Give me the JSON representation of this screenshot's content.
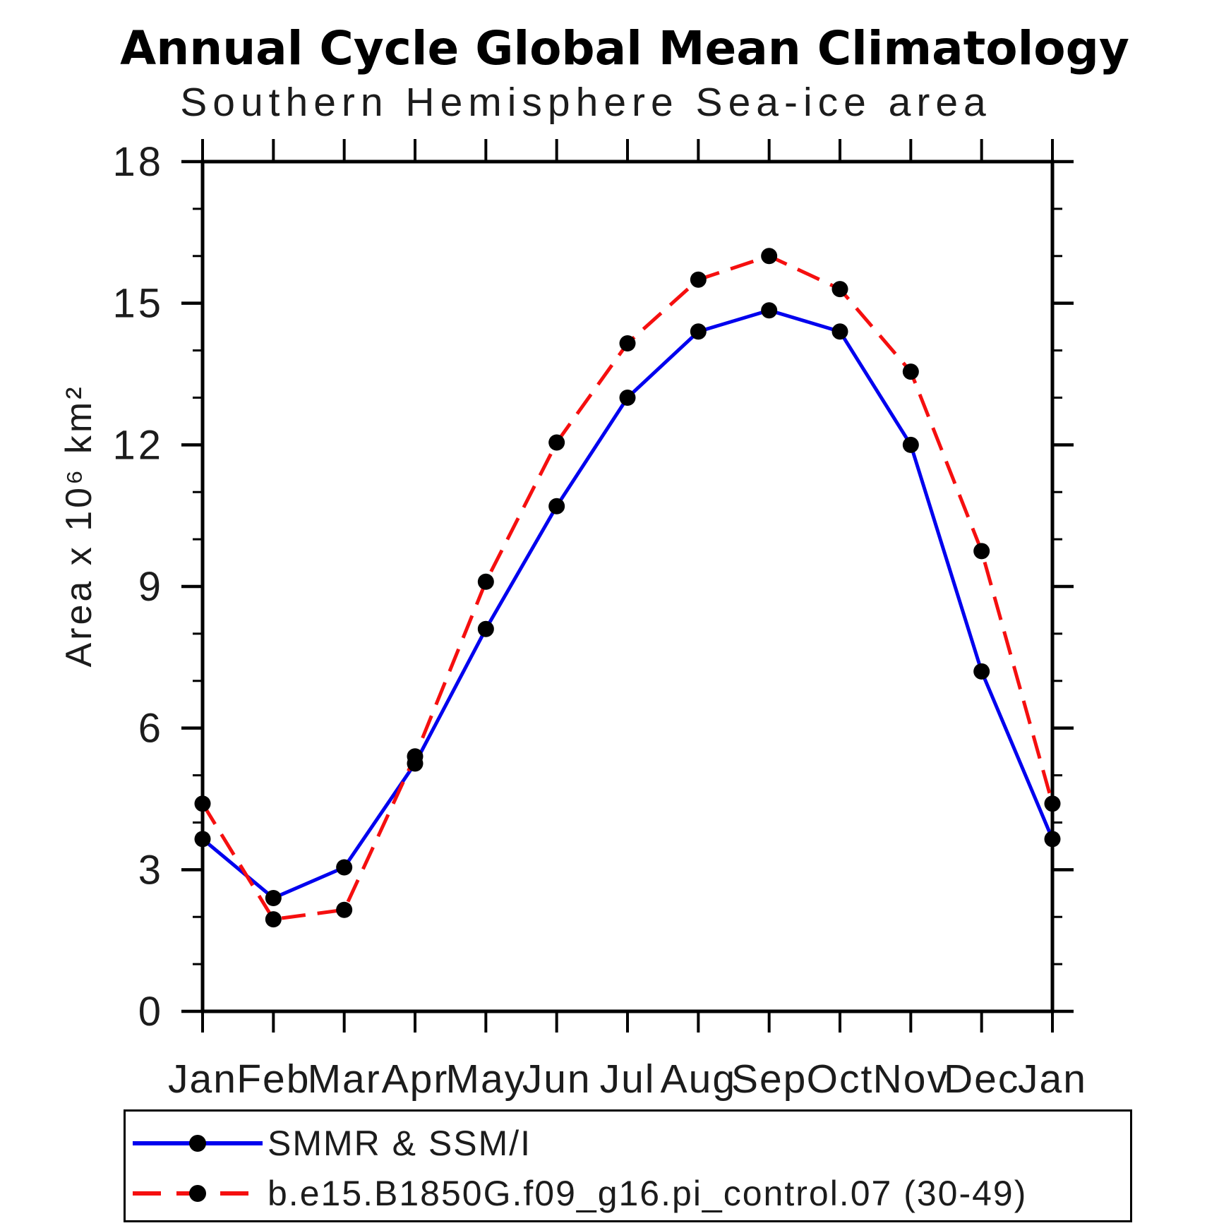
{
  "title": "Annual Cycle Global Mean Climatology",
  "subtitle": "Southern Hemisphere Sea-ice area",
  "y_axis_label": "Area x 10⁶ km²",
  "legend": [
    {
      "label": "SMMR & SSM/I",
      "color": "#0000ee",
      "style": "solid"
    },
    {
      "label": "b.e15.B1850G.f09_g16.pi_control.07 (30-49)",
      "color": "#f50f0f",
      "style": "dashed"
    }
  ],
  "chart_data": {
    "type": "line",
    "title": "Southern Hemisphere Sea-ice area",
    "xlabel": "",
    "ylabel": "Area x 10^6 km^2",
    "categories": [
      "Jan",
      "Feb",
      "Mar",
      "Apr",
      "May",
      "Jun",
      "Jul",
      "Aug",
      "Sep",
      "Oct",
      "Nov",
      "Dec",
      "Jan"
    ],
    "series": [
      {
        "name": "SMMR & SSM/I",
        "color": "#0000ee",
        "dash": "solid",
        "values": [
          3.65,
          2.4,
          3.05,
          5.25,
          8.1,
          10.7,
          13.0,
          14.4,
          14.85,
          14.4,
          12.0,
          7.2,
          3.65
        ]
      },
      {
        "name": "b.e15.B1850G.f09_g16.pi_control.07 (30-49)",
        "color": "#f50f0f",
        "dash": "dashed",
        "values": [
          4.4,
          1.95,
          2.15,
          5.4,
          9.1,
          12.05,
          14.15,
          15.5,
          16.0,
          15.3,
          13.55,
          9.75,
          4.4
        ]
      }
    ],
    "marker_color": "#000000",
    "ylim": [
      0,
      18
    ],
    "y_major_ticks": [
      0,
      3,
      6,
      9,
      12,
      15,
      18
    ],
    "y_minor_step": 1,
    "grid": false,
    "legend_position": "bottom"
  }
}
